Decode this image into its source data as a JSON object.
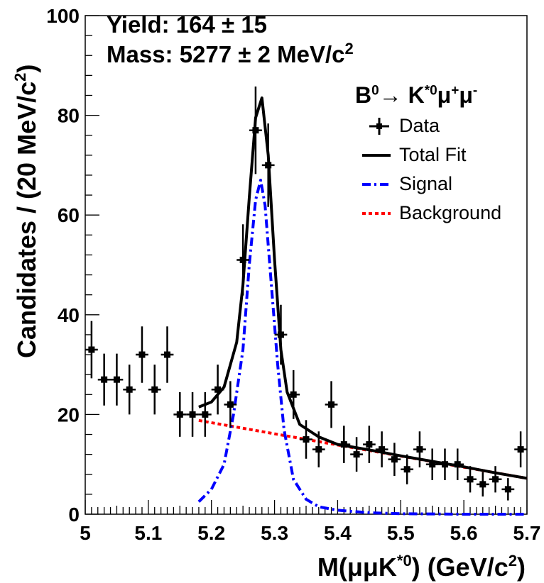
{
  "annotations": {
    "yield_label": "Yield: 164",
    "yield_pm": "±",
    "yield_err": "15",
    "mass_label": "Mass: 5277",
    "mass_pm": "±",
    "mass_err": "2 MeV/c",
    "mass_sup": "2"
  },
  "legend": {
    "title_a": "B",
    "title_a_sup": "0",
    "title_arrow": "→",
    "title_b": "K",
    "title_b_sup": "*0",
    "title_c": "μ",
    "title_c_sup": "+",
    "title_d": "μ",
    "title_d_sup": "-",
    "entries": [
      {
        "label": "Data",
        "color": "#000000"
      },
      {
        "label": "Total Fit",
        "color": "#000000"
      },
      {
        "label": "Signal",
        "color": "#0000ff"
      },
      {
        "label": "Background",
        "color": "#ff0000"
      }
    ]
  },
  "chart_data": {
    "type": "scatter",
    "xlabel": "M(μμK*0) (GeV/c2)",
    "ylabel": "Candidates / (20 MeV/c2)",
    "xlim": [
      5.0,
      5.7
    ],
    "ylim": [
      0,
      100
    ],
    "x_ticks": [
      "5",
      "5.1",
      "5.2",
      "5.3",
      "5.4",
      "5.5",
      "5.6",
      "5.7"
    ],
    "y_ticks": [
      "0",
      "20",
      "40",
      "60",
      "80",
      "100"
    ],
    "data": {
      "x": [
        5.01,
        5.03,
        5.05,
        5.07,
        5.09,
        5.11,
        5.13,
        5.15,
        5.17,
        5.19,
        5.21,
        5.23,
        5.25,
        5.27,
        5.29,
        5.31,
        5.33,
        5.35,
        5.37,
        5.39,
        5.41,
        5.43,
        5.45,
        5.47,
        5.49,
        5.51,
        5.53,
        5.55,
        5.57,
        5.59,
        5.61,
        5.63,
        5.65,
        5.67,
        5.69
      ],
      "y": [
        33,
        27,
        27,
        25,
        32,
        25,
        32,
        20,
        20,
        20,
        25,
        22,
        51,
        77,
        70,
        36,
        24,
        15,
        13,
        22,
        14,
        12,
        14,
        13,
        11,
        9,
        13,
        10,
        10,
        10,
        7,
        6,
        7,
        5,
        13
      ]
    },
    "total_fit": {
      "x": [
        5.18,
        5.2,
        5.22,
        5.24,
        5.25,
        5.26,
        5.27,
        5.28,
        5.29,
        5.3,
        5.31,
        5.32,
        5.34,
        5.37,
        5.4,
        5.45,
        5.5,
        5.55,
        5.6,
        5.65,
        5.7
      ],
      "y": [
        21.5,
        22.5,
        25.5,
        34.5,
        46.0,
        63.5,
        79.5,
        83.5,
        72.0,
        51.0,
        33.0,
        24.5,
        18.0,
        15.5,
        14.0,
        12.9,
        11.7,
        10.6,
        9.5,
        8.3,
        7.2
      ]
    },
    "signal": {
      "x": [
        5.18,
        5.2,
        5.22,
        5.235,
        5.25,
        5.26,
        5.27,
        5.278,
        5.285,
        5.295,
        5.305,
        5.315,
        5.33,
        5.35,
        5.37,
        5.4,
        5.45,
        5.5,
        5.6,
        5.7
      ],
      "y": [
        2.5,
        5.0,
        10.0,
        20.0,
        33.0,
        50.0,
        63.0,
        67.0,
        62.0,
        46.0,
        30.0,
        17.0,
        7.0,
        3.0,
        1.5,
        0.8,
        0.3,
        0.1,
        0.0,
        0.0
      ],
      "color": "#0000ff"
    },
    "background": {
      "x": [
        5.18,
        5.7
      ],
      "y": [
        18.8,
        7.2
      ],
      "color": "#ff0000"
    },
    "grid": false
  }
}
